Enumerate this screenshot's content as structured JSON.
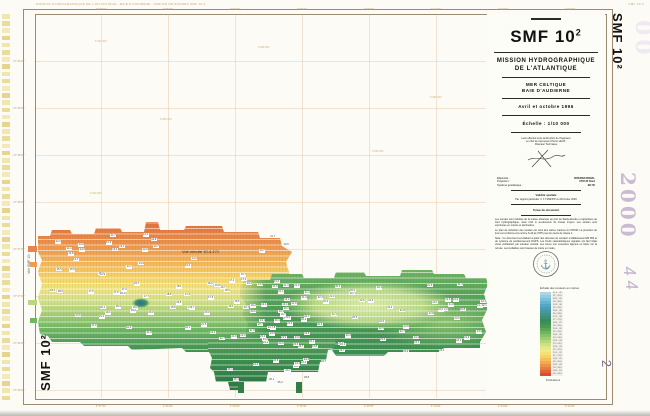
{
  "colors": {
    "paper": "#fcfbf5",
    "frame": "#9a8b72",
    "grid": "#d6a078",
    "shallow_orange": "#de6c38",
    "mid_yellow": "#f7d468",
    "deep_green": "#2a7843",
    "stamp_purple": "#cabbd3"
  },
  "margins": {
    "header_note": "MISSION HYDROGRAPHIQUE DE L'ATLANTIQUE - BAIE D'AUDIERNE - MINUTE DE SONDES SMF 10-2",
    "header_note_right": "SMF 10-2",
    "top_labels": [
      "4°37'00\"",
      "4°36'30\"",
      "4°36'00\"",
      "4°35'30\"",
      "4°35'00\"",
      "4°34'30\"",
      "4°34'00\"",
      "4°33'30\""
    ],
    "left_labels": [
      "47°49'30\"",
      "47°49'00\"",
      "47°48'30\"",
      "47°48'00\"",
      "47°47'30\"",
      "47°47'00\"",
      "47°46'30\"",
      "47°46'00\""
    ],
    "bottom_labels": [
      "4°37'00\"",
      "4°36'30\"",
      "4°36'00\"",
      "4°35'30\"",
      "4°35'00\"",
      "4°34'30\"",
      "4°34'00\"",
      "4°33'30\""
    ],
    "inner_labels": [
      "5 297 000",
      "5 296 500",
      "5 296 000",
      "5 295 500",
      "5 295 000",
      "5 294 500"
    ]
  },
  "map": {
    "see_minute_label": "Voir minute 10-4-171",
    "see_adjacent_label": "Voir SMF 10¹",
    "vertical_title_bottom_left": "SMF 10²",
    "vertical_title_top_right": "SMF 10²"
  },
  "stamps": {
    "year_stamp": "2000",
    "ghost_stamp": "00",
    "handwritten_mid": "4 4",
    "handwritten_bottom": "2"
  },
  "cartouche": {
    "title": "SMF 10",
    "title_sup": "2",
    "mission_line1": "MISSION HYDROGRAPHIQUE",
    "mission_line2": "DE L'ATLANTIQUE",
    "area_line1": "MER CELTIQUE",
    "area_line2": "BAIE D'AUDIERNE",
    "date_line": "Avril et octobre 1996",
    "scale_line": "Échelle : 1/10 000",
    "credit_lines": [
      "Levé effectué sous la direction de l'ingénieur",
      "en chef de l'armement Pierre LEUX,",
      "Directeur Technique"
    ],
    "fields": [
      {
        "label": "Ellipsoïde :",
        "value": "INTERNATIONAL"
      },
      {
        "label": "Projection :",
        "value": "UTM 30 Nord"
      },
      {
        "label": "Système géodésique :",
        "value": "ED 50"
      }
    ],
    "validity_heading": "Validité spatiale",
    "validity_line": "Par rapport particulier n° 17 SMF/HF du 29 février 2000",
    "upkeep_heading": "Tenue du document",
    "notes": [
      "Les sondes sont réduites de la marée observée au port de Sainte-Evette et rapportées au zéro hydrographique, situé 2,91 m au-dessous du niveau moyen. Les sondes sont exprimées en mètres et décimètres.",
      "Le plan de réduction des sondes est celui des cartes marines du SHOM. La précision du levé est conforme à la norme S-44 de l'OHI pour les levés de classe 1.",
      "Nota : Ce document est élaboré à partir des données du sondeur multifaisceaux EM 950 et du système de positionnement DGPS. Les fonds caractéristiques signalés ont fait l'objet d'une vérification par sondeur vertical. Les zones non couvertes figurent en blanc sur la minute. Les isobathes sont tracées de mètre en mètre."
    ]
  },
  "legend": {
    "title": "Échelle des couleurs en mètres",
    "footer": "Profondeurs",
    "entries": [
      {
        "color": "#a9d7e8",
        "label": "31,5 - 32"
      },
      {
        "color": "#93cbe0",
        "label": "31 - 31,5"
      },
      {
        "color": "#7cbfd8",
        "label": "30,5 - 31"
      },
      {
        "color": "#66b2cf",
        "label": "30 - 30,5"
      },
      {
        "color": "#54a6c5",
        "label": "29,5 - 30"
      },
      {
        "color": "#4a9cb4",
        "label": "29 - 29,5"
      },
      {
        "color": "#47989e",
        "label": "28,5 - 29"
      },
      {
        "color": "#459388",
        "label": "28 - 28,5"
      },
      {
        "color": "#3f8f72",
        "label": "27,5 - 28"
      },
      {
        "color": "#3a8a5f",
        "label": "27 - 27,5"
      },
      {
        "color": "#3f9154",
        "label": "26,5 - 27"
      },
      {
        "color": "#4a9b52",
        "label": "26 - 26,5"
      },
      {
        "color": "#5aa857",
        "label": "25,5 - 26"
      },
      {
        "color": "#6fb55f",
        "label": "25 - 25,5"
      },
      {
        "color": "#86c268",
        "label": "24,5 - 25"
      },
      {
        "color": "#9ecd70",
        "label": "24 - 24,5"
      },
      {
        "color": "#b6d878",
        "label": "23,5 - 24"
      },
      {
        "color": "#cde183",
        "label": "23 - 23,5"
      },
      {
        "color": "#e0e88c",
        "label": "22,5 - 23"
      },
      {
        "color": "#eeea86",
        "label": "22 - 22,5"
      },
      {
        "color": "#f4e176",
        "label": "21,5 - 22"
      },
      {
        "color": "#f6d264",
        "label": "21 - 21,5"
      },
      {
        "color": "#f5bf58",
        "label": "20,5 - 21"
      },
      {
        "color": "#f2a94f",
        "label": "20 - 20,5"
      },
      {
        "color": "#ee9247",
        "label": "19,5 - 20"
      },
      {
        "color": "#e97b3f",
        "label": "19 - 19,5"
      },
      {
        "color": "#e26438",
        "label": "18,5 - 19"
      },
      {
        "color": "#d94e31",
        "label": "18 - 18,5"
      }
    ]
  }
}
